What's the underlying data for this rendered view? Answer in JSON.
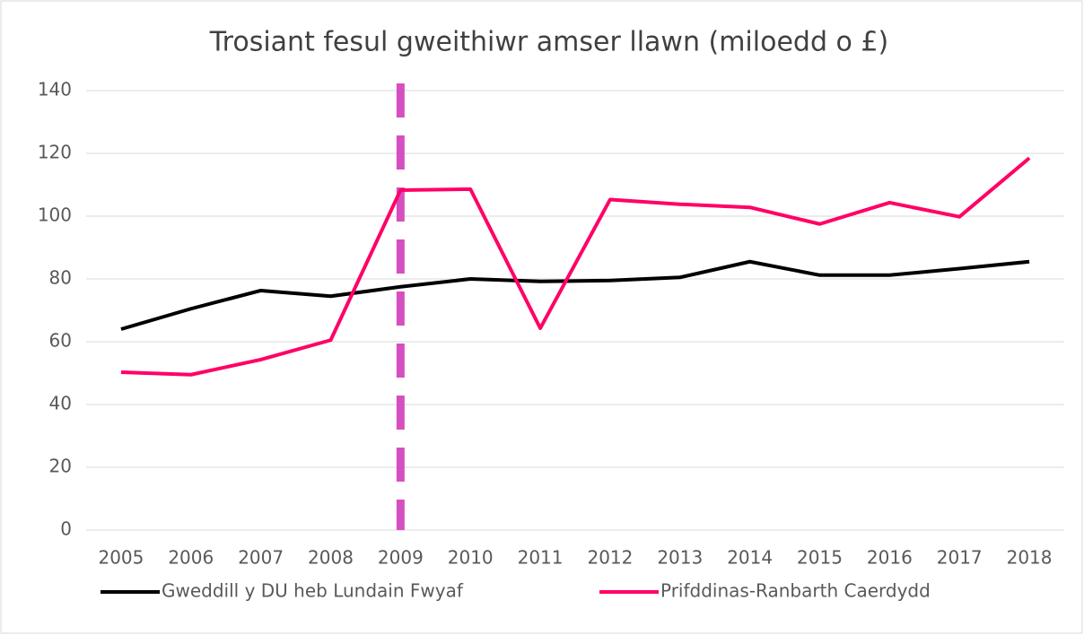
{
  "chart_data": {
    "type": "line",
    "title": "Trosiant fesul gweithiwr amser llawn (miloedd o £)",
    "categories": [
      "2005",
      "2006",
      "2007",
      "2008",
      "2009",
      "2010",
      "2011",
      "2012",
      "2013",
      "2014",
      "2015",
      "2016",
      "2017",
      "2018"
    ],
    "series": [
      {
        "name": "Gweddill y DU heb Lundain Fwyaf",
        "color": "#000000",
        "values": [
          64,
          70.5,
          76.3,
          74.5,
          77.5,
          80,
          79.2,
          79.5,
          80.5,
          85.5,
          81.2,
          81.2,
          83.3,
          85.5
        ]
      },
      {
        "name": "Prifddinas-Ranbarth Caerdydd",
        "color": "#ff0066",
        "values": [
          50.3,
          49.5,
          54.3,
          60.5,
          108.3,
          108.6,
          64.3,
          105.3,
          103.8,
          102.8,
          97.5,
          104.3,
          99.8,
          118.5
        ]
      }
    ],
    "vline": {
      "x": "2009",
      "color": "#d64fc0"
    },
    "ylim": [
      0,
      140
    ],
    "yticks": [
      0,
      20,
      40,
      60,
      80,
      100,
      120,
      140
    ],
    "grid": true,
    "legend": "bottom"
  }
}
